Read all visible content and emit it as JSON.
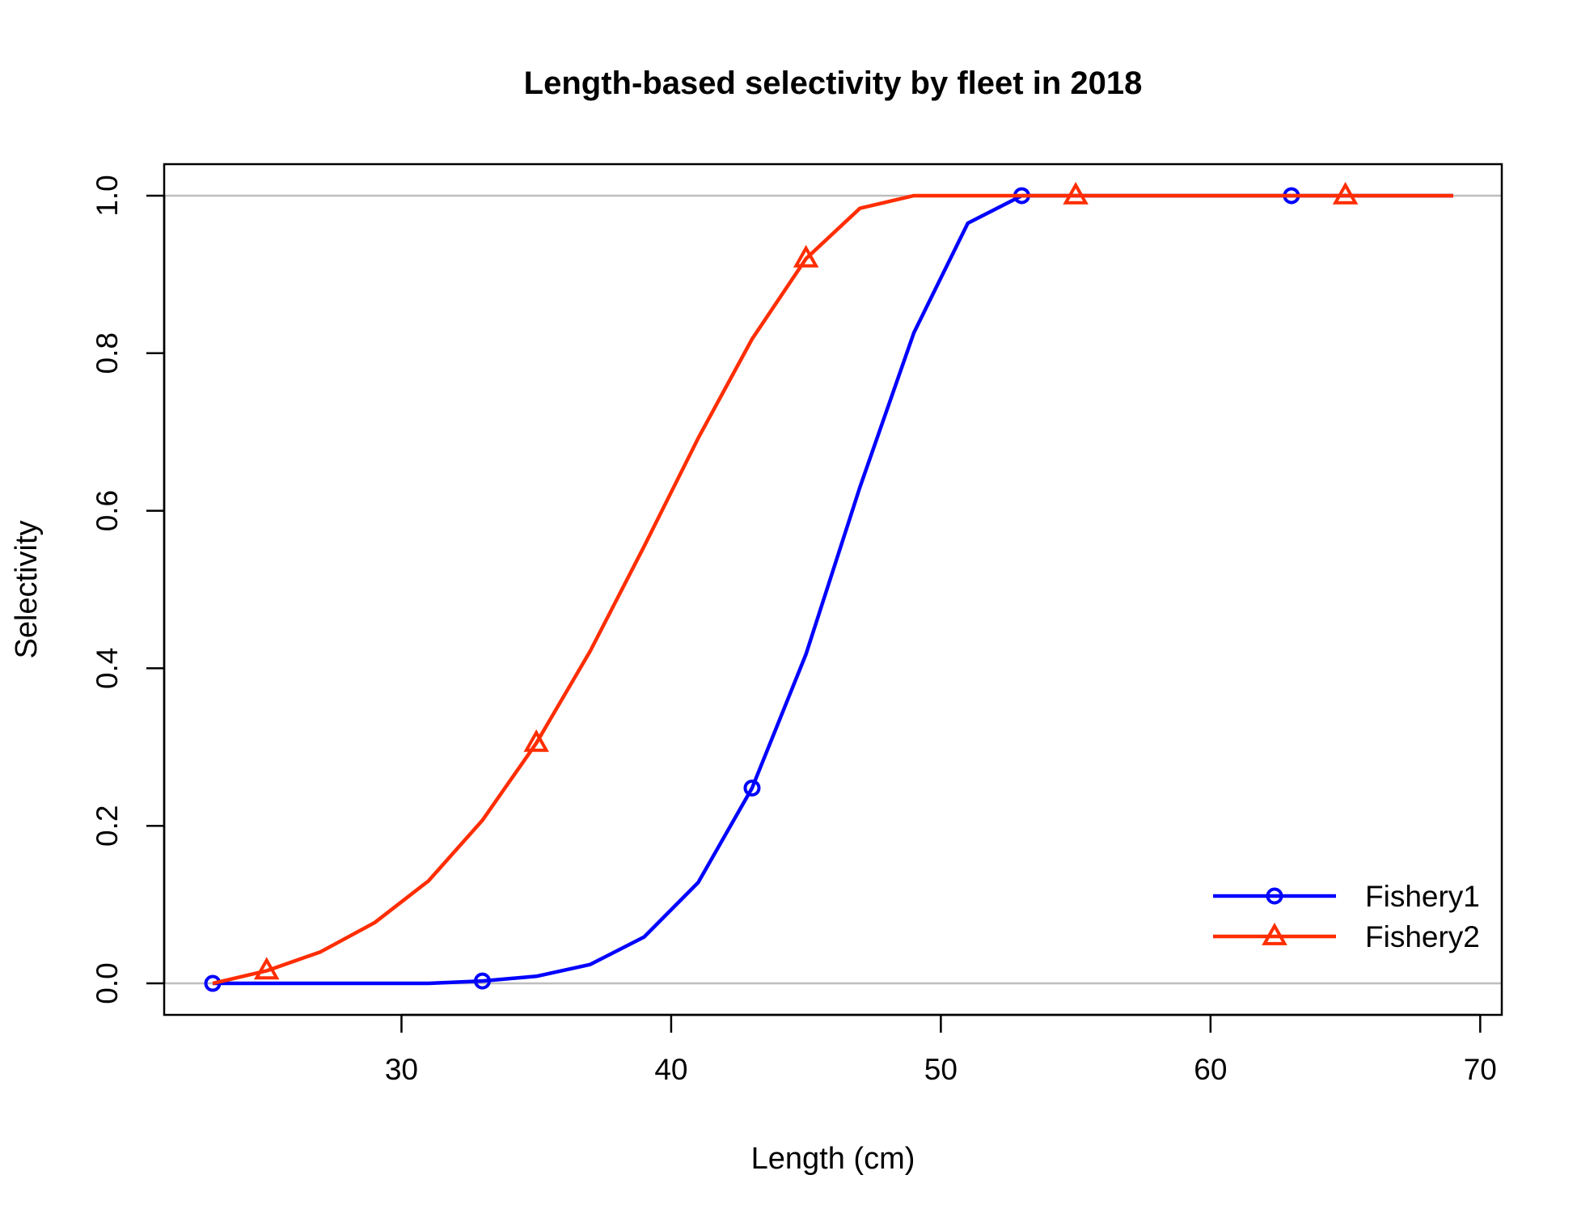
{
  "chart_data": {
    "type": "line",
    "title": "Length-based selectivity by fleet in 2018",
    "xlabel": "Length (cm)",
    "ylabel": "Selectivity",
    "xlim": [
      21.2,
      70.8
    ],
    "ylim": [
      -0.04,
      1.04
    ],
    "x_ticks": [
      30,
      40,
      50,
      60,
      70
    ],
    "y_ticks": [
      0.0,
      0.2,
      0.4,
      0.6,
      0.8,
      1.0
    ],
    "x_tick_labels": [
      "30",
      "40",
      "50",
      "60",
      "70"
    ],
    "y_tick_labels": [
      "0.0",
      "0.2",
      "0.4",
      "0.6",
      "0.8",
      "1.0"
    ],
    "reference_lines_y": [
      0,
      1
    ],
    "reference_line_color": "#bebebe",
    "legend_position": "bottom-right",
    "series": [
      {
        "name": "Fishery1",
        "color": "#0000ff",
        "marker": "circle",
        "x": [
          23,
          25,
          27,
          29,
          31,
          33,
          35,
          37,
          39,
          41,
          43,
          45,
          47,
          49,
          51,
          53,
          55,
          57,
          59,
          61,
          63,
          65,
          67,
          69
        ],
        "y": [
          0.0,
          0.0,
          0.0,
          0.0,
          0.0,
          0.003,
          0.009,
          0.024,
          0.059,
          0.128,
          0.248,
          0.418,
          0.63,
          0.826,
          0.965,
          1.0,
          1.0,
          1.0,
          1.0,
          1.0,
          1.0,
          1.0,
          1.0,
          1.0
        ],
        "marker_x": [
          23,
          33,
          43,
          53,
          63
        ],
        "marker_y": [
          0.0,
          0.003,
          0.248,
          1.0,
          1.0
        ]
      },
      {
        "name": "Fishery2",
        "color": "#ff2d00",
        "marker": "triangle",
        "x": [
          23,
          25,
          27,
          29,
          31,
          33,
          35,
          37,
          39,
          41,
          43,
          45,
          47,
          49,
          51,
          53,
          55,
          57,
          59,
          61,
          63,
          65,
          67,
          69
        ],
        "y": [
          0.0,
          0.016,
          0.04,
          0.077,
          0.13,
          0.207,
          0.305,
          0.422,
          0.555,
          0.692,
          0.818,
          0.92,
          0.984,
          1.0,
          1.0,
          1.0,
          1.0,
          1.0,
          1.0,
          1.0,
          1.0,
          1.0,
          1.0,
          1.0
        ],
        "marker_x": [
          25,
          35,
          45,
          55,
          65
        ],
        "marker_y": [
          0.016,
          0.305,
          0.92,
          1.0,
          1.0
        ]
      }
    ]
  }
}
